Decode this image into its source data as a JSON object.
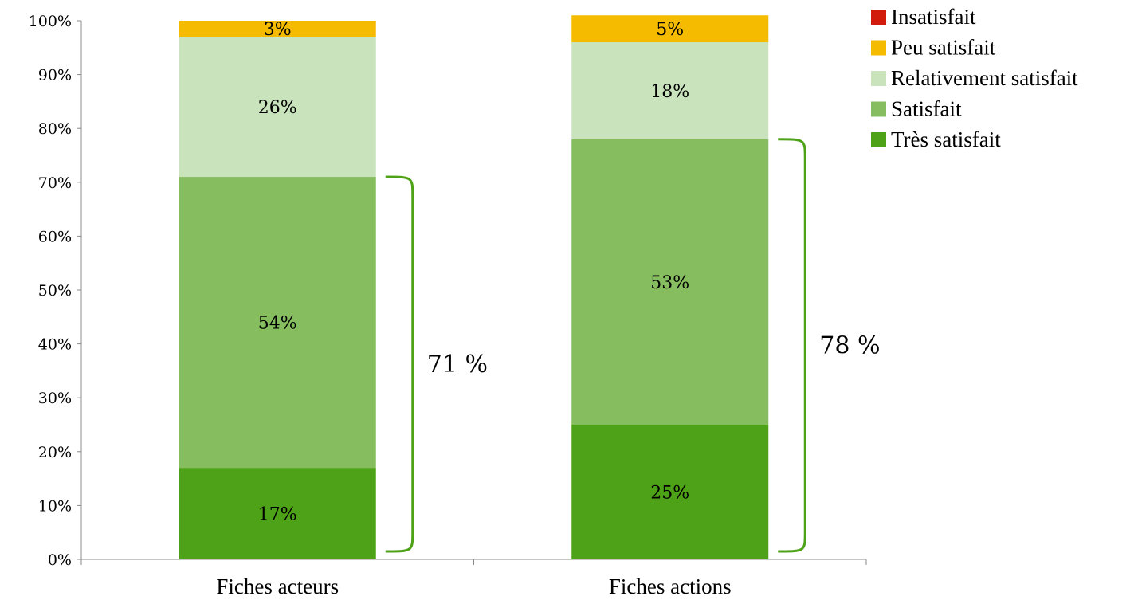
{
  "chart_data": {
    "type": "bar",
    "stacked": true,
    "percent": true,
    "categories": [
      "Fiches acteurs",
      "Fiches actions"
    ],
    "series": [
      {
        "name": "Très satisfait",
        "color": "#4ea217",
        "values": [
          17,
          25
        ],
        "labels": [
          "17%",
          "25%"
        ]
      },
      {
        "name": "Satisfait",
        "color": "#86bd5f",
        "values": [
          54,
          53
        ],
        "labels": [
          "54%",
          "53%"
        ]
      },
      {
        "name": "Relativement satisfait",
        "color": "#c9e3bc",
        "values": [
          26,
          18
        ],
        "labels": [
          "26%",
          "18%"
        ]
      },
      {
        "name": "Peu satisfait",
        "color": "#f5bb00",
        "values": [
          3,
          5
        ],
        "labels": [
          "3%",
          "5%"
        ]
      },
      {
        "name": "Insatisfait",
        "color": "#d11c0c",
        "values": [
          0,
          0
        ],
        "labels": [
          "",
          ""
        ]
      }
    ],
    "legend_order": [
      "Insatisfait",
      "Peu satisfait",
      "Relativement satisfait",
      "Satisfait",
      "Très satisfait"
    ],
    "legend_position": "top-right",
    "ylim": [
      0,
      100
    ],
    "yticks": [
      "0%",
      "10%",
      "20%",
      "30%",
      "40%",
      "50%",
      "60%",
      "70%",
      "80%",
      "90%",
      "100%"
    ],
    "grid": false,
    "annotations": [
      {
        "category": "Fiches acteurs",
        "from": 0,
        "to": 71,
        "text": "71 %",
        "color": "#4ea217"
      },
      {
        "category": "Fiches actions",
        "from": 0,
        "to": 78,
        "text": "78 %",
        "color": "#4ea217"
      }
    ]
  }
}
